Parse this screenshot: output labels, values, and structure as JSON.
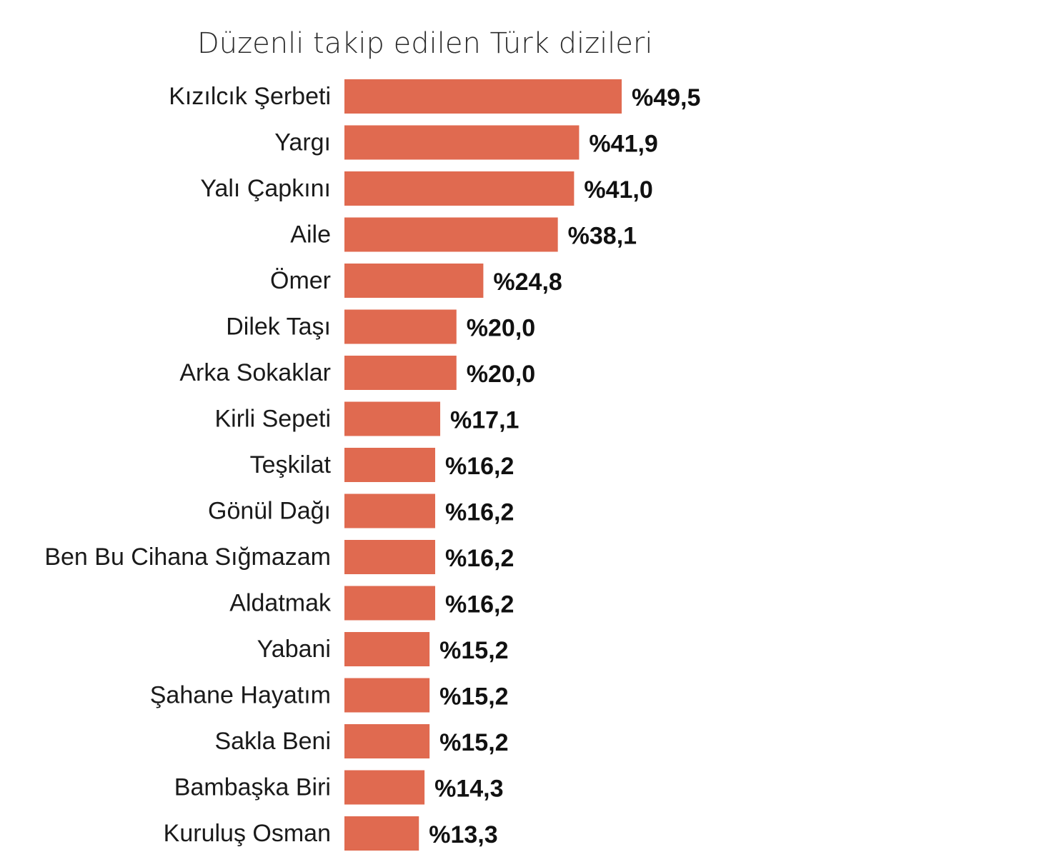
{
  "chart_data": {
    "type": "bar",
    "orientation": "horizontal",
    "title": "Düzenli takip edilen Türk dizileri",
    "value_prefix": "%",
    "bar_color": "#e06a50",
    "categories": [
      "Kızılcık Şerbeti",
      "Yargı",
      "Yalı Çapkını",
      "Aile",
      "Ömer",
      "Dilek Taşı",
      "Arka Sokaklar",
      "Kirli Sepeti",
      "Teşkilat",
      "Gönül Dağı",
      "Ben Bu Cihana Sığmazam",
      "Aldatmak",
      "Yabani",
      "Şahane Hayatım",
      "Sakla Beni",
      "Bambaşka Biri",
      "Kuruluş Osman"
    ],
    "values": [
      49.5,
      41.9,
      41.0,
      38.1,
      24.8,
      20.0,
      20.0,
      17.1,
      16.2,
      16.2,
      16.2,
      16.2,
      15.2,
      15.2,
      15.2,
      14.3,
      13.3
    ],
    "value_labels": [
      "%49,5",
      "%41,9",
      "%41,0",
      "%38,1",
      "%24,8",
      "%20,0",
      "%20,0",
      "%17,1",
      "%16,2",
      "%16,2",
      "%16,2",
      "%16,2",
      "%15,2",
      "%15,2",
      "%15,2",
      "%14,3",
      "%13,3"
    ],
    "xlim": [
      0,
      49.5
    ],
    "grid": false,
    "legend": "none"
  }
}
